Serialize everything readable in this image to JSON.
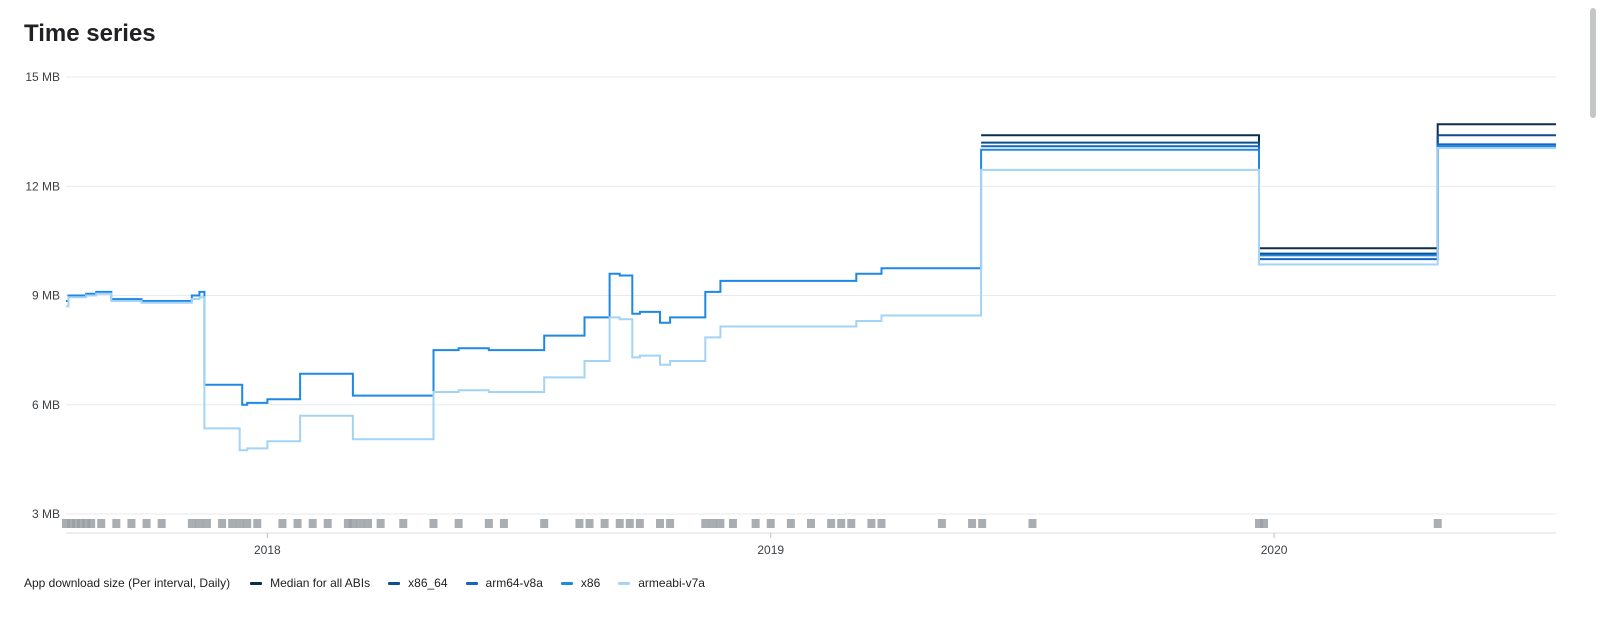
{
  "panel": {
    "title": "Time series"
  },
  "legend": {
    "prefix": "App download size (Per interval, Daily)",
    "items": [
      {
        "label": "Median for all ABIs",
        "color": "#0b2e4f"
      },
      {
        "label": "x86_64",
        "color": "#0d4f8b"
      },
      {
        "label": "arm64-v8a",
        "color": "#1565c0"
      },
      {
        "label": "x86",
        "color": "#1e88e5"
      },
      {
        "label": "armeabi-v7a",
        "color": "#a3d4f5"
      }
    ]
  },
  "chart_data": {
    "type": "line",
    "title": "Time series",
    "xlabel": "",
    "ylabel": "",
    "x_ticks": [
      "2018",
      "2019",
      "2020"
    ],
    "y_ticks": [
      "3 MB",
      "6 MB",
      "9 MB",
      "12 MB",
      "15 MB"
    ],
    "ylim": [
      3,
      15
    ],
    "xlim": [
      2017.6,
      2020.56
    ],
    "grid": true,
    "legend_position": "bottom-left",
    "step": true,
    "series": [
      {
        "name": "Median for all ABIs",
        "color": "#0b2e4f",
        "points": [
          [
            2019.418,
            13.4
          ],
          [
            2019.97,
            13.4
          ],
          [
            2019.97,
            10.3
          ],
          [
            2020.325,
            10.3
          ],
          [
            2020.325,
            13.7
          ],
          [
            2020.56,
            13.7
          ]
        ]
      },
      {
        "name": "x86_64",
        "color": "#0d4f8b",
        "points": [
          [
            2019.418,
            13.2
          ],
          [
            2019.97,
            13.2
          ],
          [
            2019.97,
            10.15
          ],
          [
            2020.325,
            10.15
          ],
          [
            2020.325,
            13.4
          ],
          [
            2020.56,
            13.4
          ]
        ]
      },
      {
        "name": "arm64-v8a",
        "color": "#1565c0",
        "points": [
          [
            2019.418,
            13.1
          ],
          [
            2019.97,
            13.1
          ],
          [
            2019.97,
            10.0
          ],
          [
            2020.325,
            10.0
          ],
          [
            2020.325,
            13.15
          ],
          [
            2020.56,
            13.15
          ]
        ]
      },
      {
        "name": "x86",
        "color": "#1e88e5",
        "points": [
          [
            2017.6,
            8.85
          ],
          [
            2017.605,
            9.0
          ],
          [
            2017.64,
            9.05
          ],
          [
            2017.66,
            9.1
          ],
          [
            2017.69,
            8.9
          ],
          [
            2017.75,
            8.85
          ],
          [
            2017.85,
            9.0
          ],
          [
            2017.865,
            9.1
          ],
          [
            2017.875,
            6.55
          ],
          [
            2017.945,
            6.55
          ],
          [
            2017.95,
            6.0
          ],
          [
            2017.96,
            6.05
          ],
          [
            2018.0,
            6.15
          ],
          [
            2018.065,
            6.85
          ],
          [
            2018.17,
            6.85
          ],
          [
            2018.17,
            6.25
          ],
          [
            2018.33,
            6.25
          ],
          [
            2018.33,
            7.5
          ],
          [
            2018.38,
            7.55
          ],
          [
            2018.44,
            7.5
          ],
          [
            2018.55,
            7.9
          ],
          [
            2018.63,
            8.4
          ],
          [
            2018.68,
            9.6
          ],
          [
            2018.7,
            9.55
          ],
          [
            2018.725,
            8.5
          ],
          [
            2018.74,
            8.55
          ],
          [
            2018.78,
            8.25
          ],
          [
            2018.8,
            8.4
          ],
          [
            2018.87,
            9.1
          ],
          [
            2018.9,
            9.4
          ],
          [
            2019.17,
            9.6
          ],
          [
            2019.22,
            9.75
          ],
          [
            2019.418,
            9.75
          ],
          [
            2019.418,
            13.0
          ],
          [
            2019.97,
            13.0
          ],
          [
            2019.97,
            10.1
          ],
          [
            2020.325,
            10.1
          ],
          [
            2020.325,
            13.1
          ],
          [
            2020.56,
            13.1
          ]
        ]
      },
      {
        "name": "armeabi-v7a",
        "color": "#a3d4f5",
        "points": [
          [
            2017.6,
            8.7
          ],
          [
            2017.605,
            8.95
          ],
          [
            2017.64,
            9.0
          ],
          [
            2017.66,
            9.05
          ],
          [
            2017.69,
            8.85
          ],
          [
            2017.75,
            8.8
          ],
          [
            2017.85,
            8.9
          ],
          [
            2017.865,
            8.95
          ],
          [
            2017.875,
            5.35
          ],
          [
            2017.94,
            5.35
          ],
          [
            2017.945,
            4.75
          ],
          [
            2017.96,
            4.8
          ],
          [
            2018.0,
            5.0
          ],
          [
            2018.065,
            5.7
          ],
          [
            2018.17,
            5.7
          ],
          [
            2018.17,
            5.05
          ],
          [
            2018.33,
            5.05
          ],
          [
            2018.33,
            6.35
          ],
          [
            2018.38,
            6.4
          ],
          [
            2018.44,
            6.35
          ],
          [
            2018.55,
            6.75
          ],
          [
            2018.63,
            7.2
          ],
          [
            2018.68,
            8.4
          ],
          [
            2018.7,
            8.35
          ],
          [
            2018.725,
            7.3
          ],
          [
            2018.74,
            7.35
          ],
          [
            2018.78,
            7.1
          ],
          [
            2018.8,
            7.2
          ],
          [
            2018.87,
            7.85
          ],
          [
            2018.9,
            8.15
          ],
          [
            2019.17,
            8.3
          ],
          [
            2019.22,
            8.45
          ],
          [
            2019.418,
            8.45
          ],
          [
            2019.418,
            12.45
          ],
          [
            2019.97,
            12.45
          ],
          [
            2019.97,
            9.85
          ],
          [
            2020.325,
            9.85
          ],
          [
            2020.325,
            13.05
          ],
          [
            2020.56,
            13.05
          ]
        ]
      }
    ],
    "event_markers": [
      2017.6,
      2017.61,
      2017.62,
      2017.63,
      2017.64,
      2017.65,
      2017.67,
      2017.7,
      2017.73,
      2017.76,
      2017.79,
      2017.85,
      2017.865,
      2017.88,
      2017.91,
      2017.93,
      2017.945,
      2017.96,
      2017.98,
      2018.03,
      2018.06,
      2018.09,
      2018.12,
      2018.16,
      2018.17,
      2018.185,
      2018.2,
      2018.225,
      2018.27,
      2018.33,
      2018.38,
      2018.44,
      2018.47,
      2018.55,
      2018.62,
      2018.64,
      2018.67,
      2018.7,
      2018.72,
      2018.74,
      2018.78,
      2018.8,
      2018.87,
      2018.885,
      2018.9,
      2018.925,
      2018.97,
      2019.0,
      2019.04,
      2019.08,
      2019.12,
      2019.14,
      2019.16,
      2019.2,
      2019.22,
      2019.34,
      2019.4,
      2019.42,
      2019.52,
      2019.97,
      2019.98,
      2020.325
    ]
  }
}
